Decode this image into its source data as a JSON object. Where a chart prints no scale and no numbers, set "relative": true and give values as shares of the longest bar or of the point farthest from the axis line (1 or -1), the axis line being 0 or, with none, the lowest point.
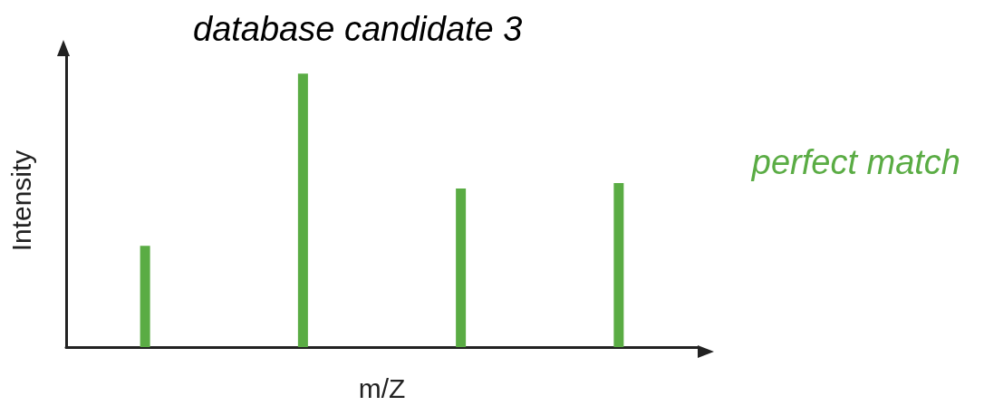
{
  "chart_data": {
    "type": "bar",
    "title": "database candidate 3",
    "xlabel": "m/Z",
    "ylabel": "Intensity",
    "categories": [
      null,
      null,
      null,
      null
    ],
    "values": [
      0.37,
      1,
      0.58,
      0.6
    ],
    "color": "#5aac44",
    "relative": true,
    "grid": false,
    "annotations": [
      "perfect match"
    ]
  }
}
